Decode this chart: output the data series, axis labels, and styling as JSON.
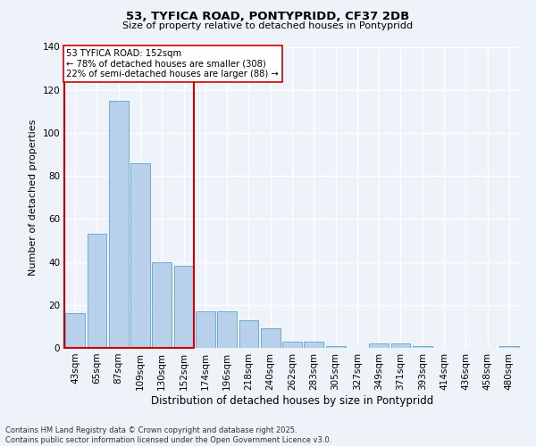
{
  "title1": "53, TYFICA ROAD, PONTYPRIDD, CF37 2DB",
  "title2": "Size of property relative to detached houses in Pontypridd",
  "xlabel": "Distribution of detached houses by size in Pontypridd",
  "ylabel": "Number of detached properties",
  "categories": [
    "43sqm",
    "65sqm",
    "87sqm",
    "109sqm",
    "130sqm",
    "152sqm",
    "174sqm",
    "196sqm",
    "218sqm",
    "240sqm",
    "262sqm",
    "283sqm",
    "305sqm",
    "327sqm",
    "349sqm",
    "371sqm",
    "393sqm",
    "414sqm",
    "436sqm",
    "458sqm",
    "480sqm"
  ],
  "values": [
    16,
    53,
    115,
    86,
    40,
    38,
    17,
    17,
    13,
    9,
    3,
    3,
    1,
    0,
    2,
    2,
    1,
    0,
    0,
    0,
    1
  ],
  "bar_color": "#b8d0ea",
  "bar_edge_color": "#6aadd5",
  "highlight_index": 5,
  "red_color": "#cc0000",
  "annotation_title": "53 TYFICA ROAD: 152sqm",
  "annotation_line1": "← 78% of detached houses are smaller (308)",
  "annotation_line2": "22% of semi-detached houses are larger (88) →",
  "annotation_box_color": "#ffffff",
  "ylim": [
    0,
    140
  ],
  "yticks": [
    0,
    20,
    40,
    60,
    80,
    100,
    120,
    140
  ],
  "footnote1": "Contains HM Land Registry data © Crown copyright and database right 2025.",
  "footnote2": "Contains public sector information licensed under the Open Government Licence v3.0.",
  "bg_color": "#eef2f9",
  "grid_color": "#ffffff"
}
